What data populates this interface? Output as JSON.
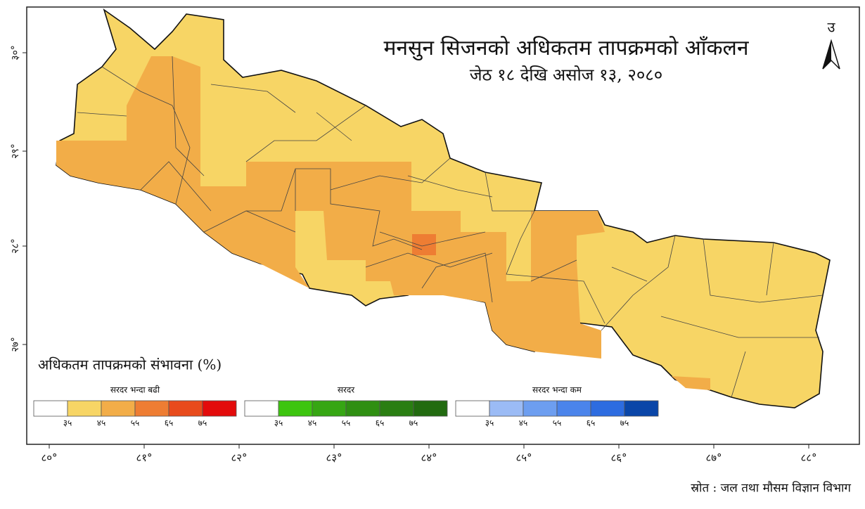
{
  "title": "मनसुन सिजनको अधिकतम तापक्रमको आँकलन",
  "subtitle": "जेठ १८ देखि असोज १३, २०८०",
  "north": "उ",
  "legend_title": "अधिकतम तापक्रमको संभावना (%)",
  "legend": [
    {
      "label": "सरदर भन्दा बढी",
      "colors": [
        "#ffffff",
        "#f7d565",
        "#f2ad48",
        "#ee7d33",
        "#e84b1c",
        "#e30b0b"
      ],
      "ticks": [
        "३५",
        "४५",
        "५५",
        "६५",
        "७५"
      ]
    },
    {
      "label": "सरदर",
      "colors": [
        "#ffffff",
        "#3dc50f",
        "#36a613",
        "#2f8f12",
        "#2a7e12",
        "#226b10"
      ],
      "ticks": [
        "३५",
        "४५",
        "५५",
        "६५",
        "७५"
      ]
    },
    {
      "label": "सरदर भन्दा कम",
      "colors": [
        "#ffffff",
        "#9bbbf5",
        "#6d9ef0",
        "#4b84eb",
        "#2d6ce0",
        "#0a46a8"
      ],
      "ticks": [
        "३५",
        "४५",
        "५५",
        "६५",
        "७५"
      ]
    }
  ],
  "lat_labels": [
    "३०°",
    "२९°",
    "२८°",
    "२७°"
  ],
  "lon_labels": [
    "८०°",
    "८१°",
    "८२°",
    "८३°",
    "८४°",
    "८५°",
    "८६°",
    "८७°",
    "८८°"
  ],
  "source": "स्रोत : जल तथा मौसम विज्ञान विभाग"
}
